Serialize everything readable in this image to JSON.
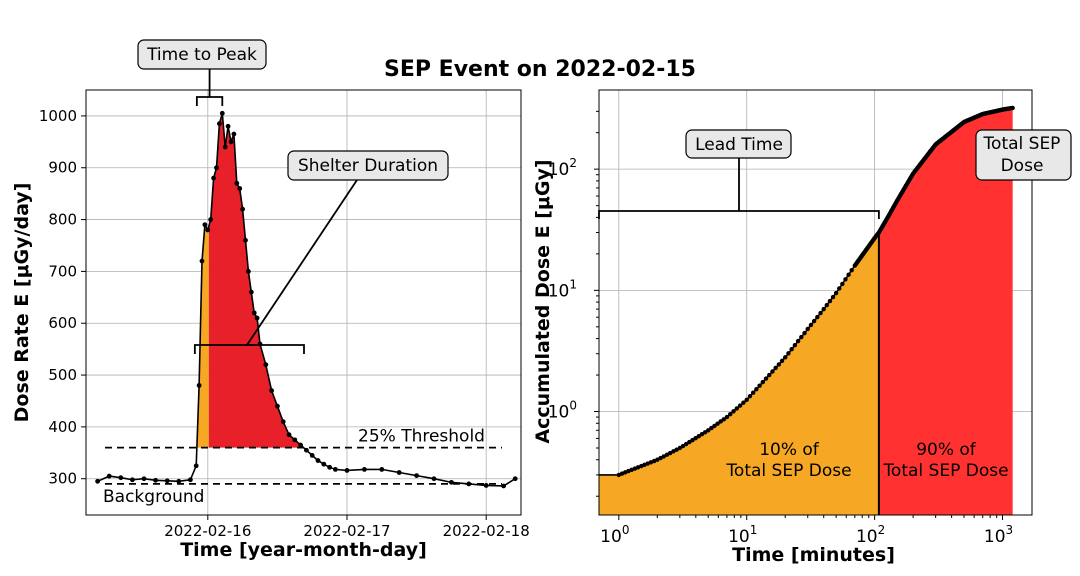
{
  "suptitle": "SEP Event on 2022-02-15",
  "colors": {
    "lead": "#f6a723",
    "shelter": "#e8202a",
    "rest": "#ff3131",
    "line": "#000000",
    "box": "#e8e8e8"
  },
  "chart_data": [
    {
      "type": "line",
      "title": "",
      "xlabel": "Time [year-month-day]",
      "ylabel": "Dose Rate E [μGy/day]",
      "x_unit": "date",
      "xlim": [
        "2022-02-15T03:00",
        "2022-02-18T06:00"
      ],
      "ylim": [
        230,
        1050
      ],
      "x_ticks": [
        {
          "label": "2022-02-16",
          "x": "2022-02-16T00:00"
        },
        {
          "label": "2022-02-17",
          "x": "2022-02-17T00:00"
        },
        {
          "label": "2022-02-18",
          "x": "2022-02-18T00:00"
        }
      ],
      "y_ticks": [
        300,
        400,
        500,
        600,
        700,
        800,
        900,
        1000
      ],
      "grid": true,
      "series": [
        {
          "x": [
            "2022-02-15T05:00",
            "2022-02-15T07:00",
            "2022-02-15T09:00",
            "2022-02-15T11:00",
            "2022-02-15T13:00",
            "2022-02-15T15:00",
            "2022-02-15T17:00",
            "2022-02-15T19:00",
            "2022-02-15T21:00",
            "2022-02-15T22:00",
            "2022-02-15T22:30",
            "2022-02-15T23:00",
            "2022-02-15T23:30",
            "2022-02-16T00:00",
            "2022-02-16T00:30",
            "2022-02-16T01:00",
            "2022-02-16T01:30",
            "2022-02-16T02:00",
            "2022-02-16T02:30",
            "2022-02-16T03:00",
            "2022-02-16T03:30",
            "2022-02-16T04:00",
            "2022-02-16T04:30",
            "2022-02-16T05:00",
            "2022-02-16T05:30",
            "2022-02-16T06:00",
            "2022-02-16T06:30",
            "2022-02-16T07:00",
            "2022-02-16T07:30",
            "2022-02-16T08:00",
            "2022-02-16T08:30",
            "2022-02-16T09:00",
            "2022-02-16T10:00",
            "2022-02-16T11:00",
            "2022-02-16T12:00",
            "2022-02-16T13:00",
            "2022-02-16T14:00",
            "2022-02-16T15:00",
            "2022-02-16T16:00",
            "2022-02-16T17:00",
            "2022-02-16T18:00",
            "2022-02-16T19:00",
            "2022-02-16T20:00",
            "2022-02-16T21:00",
            "2022-02-16T22:00",
            "2022-02-17T00:00",
            "2022-02-17T03:00",
            "2022-02-17T06:00",
            "2022-02-17T09:00",
            "2022-02-17T12:00",
            "2022-02-17T15:00",
            "2022-02-17T18:00",
            "2022-02-17T21:00",
            "2022-02-18T00:00",
            "2022-02-18T03:00",
            "2022-02-18T05:00"
          ],
          "y": [
            295,
            305,
            302,
            298,
            300,
            297,
            296,
            295,
            298,
            325,
            480,
            720,
            790,
            780,
            800,
            880,
            900,
            985,
            1005,
            940,
            980,
            950,
            965,
            870,
            860,
            820,
            760,
            700,
            660,
            620,
            610,
            560,
            520,
            470,
            440,
            410,
            385,
            375,
            365,
            355,
            345,
            335,
            328,
            322,
            318,
            316,
            318,
            318,
            312,
            306,
            300,
            293,
            290,
            287,
            286,
            300
          ]
        }
      ],
      "annotations": [
        {
          "text": "Time to Peak",
          "boxed": true
        },
        {
          "text": "Shelter Duration",
          "boxed": true
        },
        {
          "text": "25% Threshold",
          "y": 360
        },
        {
          "text": "Background",
          "y": 290
        }
      ]
    },
    {
      "type": "line",
      "title": "",
      "xlabel": "Time [minutes]",
      "ylabel": "Accumulated Dose E [μGy]",
      "xscale": "log",
      "yscale": "log",
      "xlim": [
        0.7,
        1700
      ],
      "ylim": [
        0.14,
        450
      ],
      "x_ticks": [
        {
          "label": "10",
          "exp": "0",
          "v": 1
        },
        {
          "label": "10",
          "exp": "1",
          "v": 10
        },
        {
          "label": "10",
          "exp": "2",
          "v": 100
        },
        {
          "label": "10",
          "exp": "3",
          "v": 1000
        }
      ],
      "y_ticks": [
        {
          "label": "10",
          "exp": "0",
          "v": 1
        },
        {
          "label": "10",
          "exp": "1",
          "v": 10
        },
        {
          "label": "10",
          "exp": "2",
          "v": 100
        }
      ],
      "grid": true,
      "lead_end": 108,
      "series": [
        {
          "x": [
            0.7,
            1,
            2,
            3,
            5,
            7,
            10,
            15,
            20,
            30,
            40,
            50,
            70,
            100,
            108,
            130,
            150,
            200,
            300,
            500,
            700,
            1000,
            1200
          ],
          "y": [
            0.3,
            0.3,
            0.4,
            0.5,
            0.7,
            0.9,
            1.25,
            2.0,
            2.8,
            4.8,
            7.0,
            9.5,
            16,
            27,
            30,
            42,
            55,
            92,
            160,
            245,
            285,
            310,
            320
          ]
        }
      ],
      "annotations": [
        {
          "text": "Lead Time",
          "boxed": true
        },
        {
          "text": "Total SEP",
          "text2": "Dose",
          "boxed": true
        },
        {
          "text": "10% of",
          "text2": "Total SEP Dose"
        },
        {
          "text": "90% of",
          "text2": "Total SEP Dose"
        }
      ]
    }
  ]
}
